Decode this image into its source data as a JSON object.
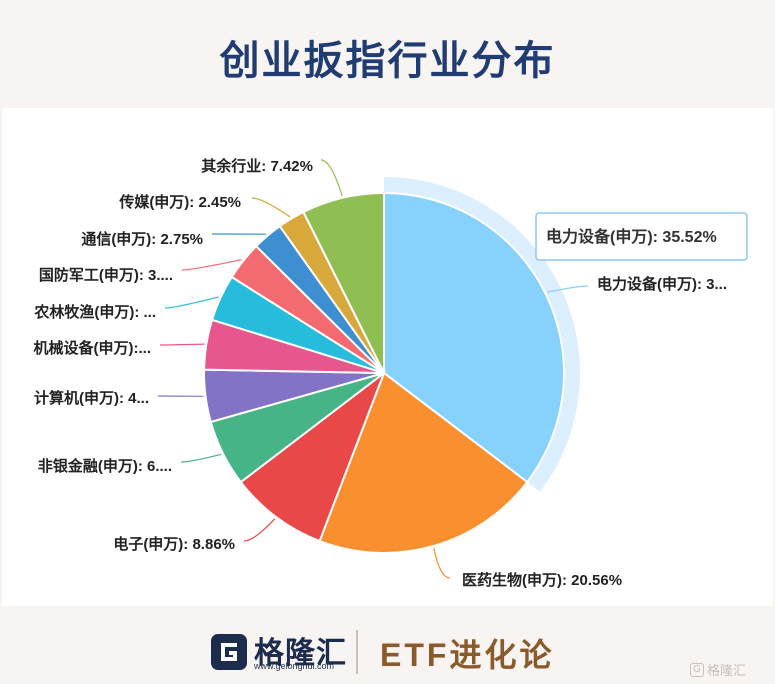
{
  "page_title": "创业扳指行业分布",
  "chart_data": {
    "type": "pie",
    "title": "创业扳指行业分布",
    "slices": [
      {
        "name": "电力设备(申万)",
        "value": 35.52,
        "label": "电力设备(申万): 3...",
        "color": "#87d2fc"
      },
      {
        "name": "医药生物(申万)",
        "value": 20.56,
        "label": "医药生物(申万): 20.56%",
        "color": "#f98f2f"
      },
      {
        "name": "电子(申万)",
        "value": 8.86,
        "label": "电子(申万): 8.86%",
        "color": "#e84948"
      },
      {
        "name": "非银金融(申万)",
        "value": 6.0,
        "label": "非银金融(申万): 6....",
        "color": "#46b486"
      },
      {
        "name": "计算机(申万)",
        "value": 4.7,
        "label": "计算机(申万): 4...",
        "color": "#8373c6"
      },
      {
        "name": "机械设备(申万)",
        "value": 4.5,
        "label": "机械设备(申万):...",
        "color": "#e8568e"
      },
      {
        "name": "农林牧渔(申万)",
        "value": 4.2,
        "label": "农林牧渔(申万): ...",
        "color": "#27bbdc"
      },
      {
        "name": "国防军工(申万)",
        "value": 3.5,
        "label": "国防军工(申万): 3....",
        "color": "#f36b70"
      },
      {
        "name": "通信(申万)",
        "value": 2.75,
        "label": "通信(申万): 2.75%",
        "color": "#3d8fd1"
      },
      {
        "name": "传媒(申万)",
        "value": 2.45,
        "label": "传媒(申万): 2.45%",
        "color": "#d8a83a"
      },
      {
        "name": "其余行业",
        "value": 7.42,
        "label": "其余行业: 7.42%",
        "color": "#8fbe53"
      }
    ],
    "highlighted_slice": 0,
    "tooltip": "电力设备(申万): 35.52%",
    "legend": "none"
  },
  "footer": {
    "brand_name": "格隆汇",
    "brand_url": "www.gelonghui.com",
    "series_name": "ETF进化论",
    "watermark": "格隆汇"
  }
}
